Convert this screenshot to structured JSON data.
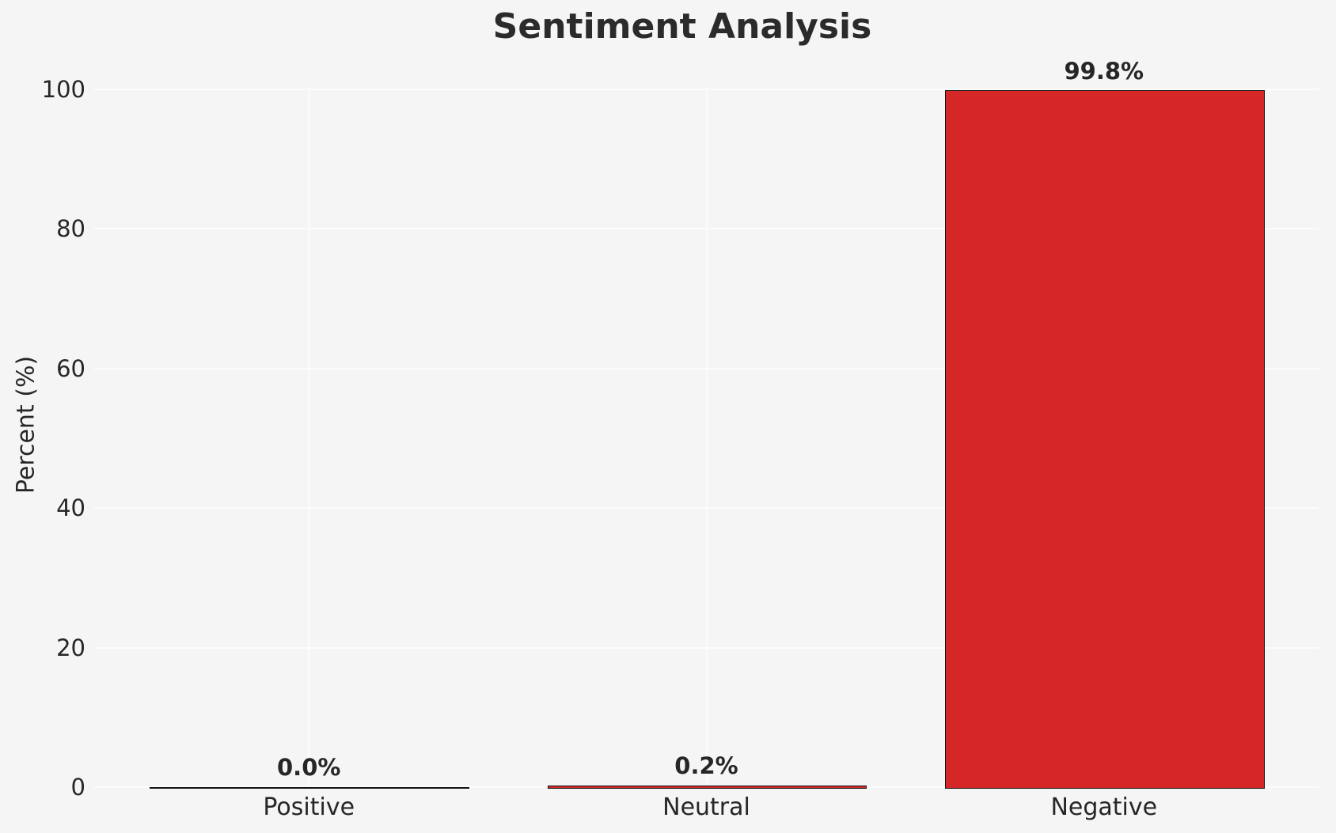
{
  "title": "Sentiment Analysis",
  "y_axis": {
    "label": "Percent (%)",
    "ticks": [
      "0",
      "20",
      "40",
      "60",
      "80",
      "100"
    ]
  },
  "chart_data": {
    "type": "bar",
    "categories": [
      "Positive",
      "Neutral",
      "Negative"
    ],
    "values": [
      0.0,
      0.2,
      99.8
    ],
    "bar_labels": [
      "0.0%",
      "0.2%",
      "99.8%"
    ],
    "title": "Sentiment Analysis",
    "xlabel": "",
    "ylabel": "Percent (%)",
    "ylim": [
      0,
      100
    ],
    "yticks": [
      0,
      20,
      40,
      60,
      80,
      100
    ],
    "grid": true,
    "legend": false,
    "layout_hints": {
      "grid_horizontal": true,
      "grid_vertical_at_categories": true,
      "bar_width_fraction": 0.8
    },
    "colors": {
      "bar_fill": "#d62728",
      "bar_edge": "#111111",
      "background": "#f5f5f5",
      "gridline": "#fcfcfc",
      "text": "#262626"
    }
  }
}
